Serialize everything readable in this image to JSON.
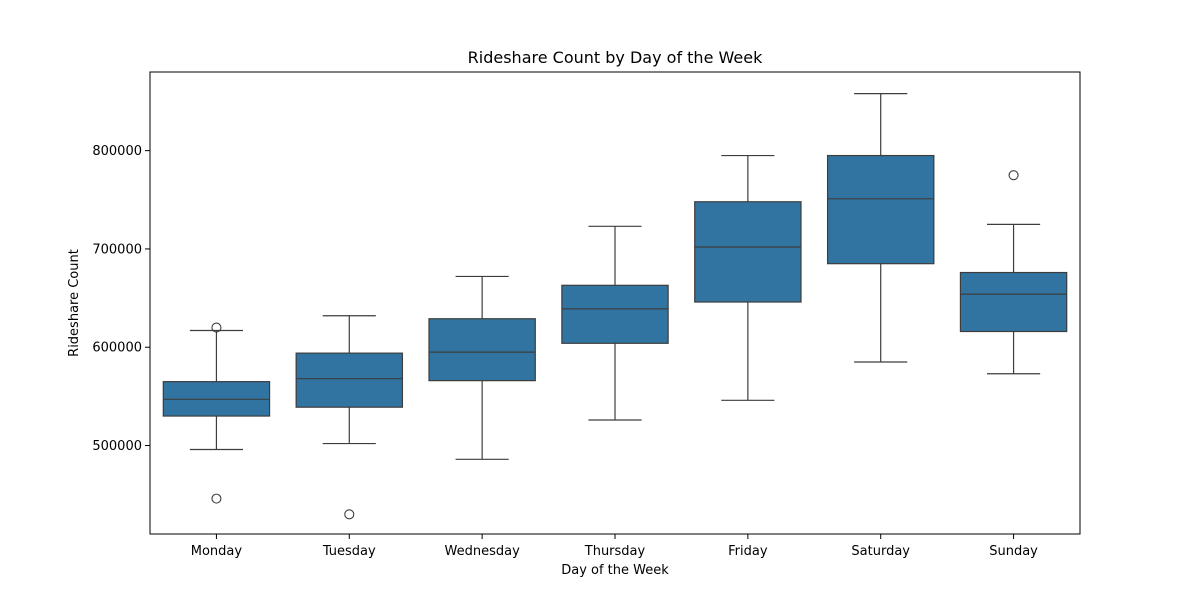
{
  "chart_data": {
    "type": "box",
    "title": "Rideshare Count by Day of the Week",
    "xlabel": "Day of the Week",
    "ylabel": "Rideshare Count",
    "ylim": [
      410000,
      880000
    ],
    "yticks": [
      500000,
      600000,
      700000,
      800000
    ],
    "ytick_labels": [
      "500000",
      "600000",
      "700000",
      "800000"
    ],
    "grid": false,
    "legend": "none",
    "box_color": "#3274a1",
    "line_color": "#3d3d3d",
    "categories": [
      "Monday",
      "Tuesday",
      "Wednesday",
      "Thursday",
      "Friday",
      "Saturday",
      "Sunday"
    ],
    "boxes": [
      {
        "min": 496000,
        "q1": 530000,
        "median": 547000,
        "q3": 565000,
        "max": 617000,
        "outliers": [
          620000,
          446000
        ]
      },
      {
        "min": 502000,
        "q1": 539000,
        "median": 568000,
        "q3": 594000,
        "max": 632000,
        "outliers": [
          430000
        ]
      },
      {
        "min": 486000,
        "q1": 566000,
        "median": 595000,
        "q3": 629000,
        "max": 672000,
        "outliers": []
      },
      {
        "min": 526000,
        "q1": 604000,
        "median": 639000,
        "q3": 663000,
        "max": 723000,
        "outliers": []
      },
      {
        "min": 546000,
        "q1": 646000,
        "median": 702000,
        "q3": 748000,
        "max": 795000,
        "outliers": []
      },
      {
        "min": 585000,
        "q1": 685000,
        "median": 751000,
        "q3": 795000,
        "max": 858000,
        "outliers": []
      },
      {
        "min": 573000,
        "q1": 616000,
        "median": 654000,
        "q3": 676000,
        "max": 725000,
        "outliers": [
          775000
        ]
      }
    ]
  }
}
